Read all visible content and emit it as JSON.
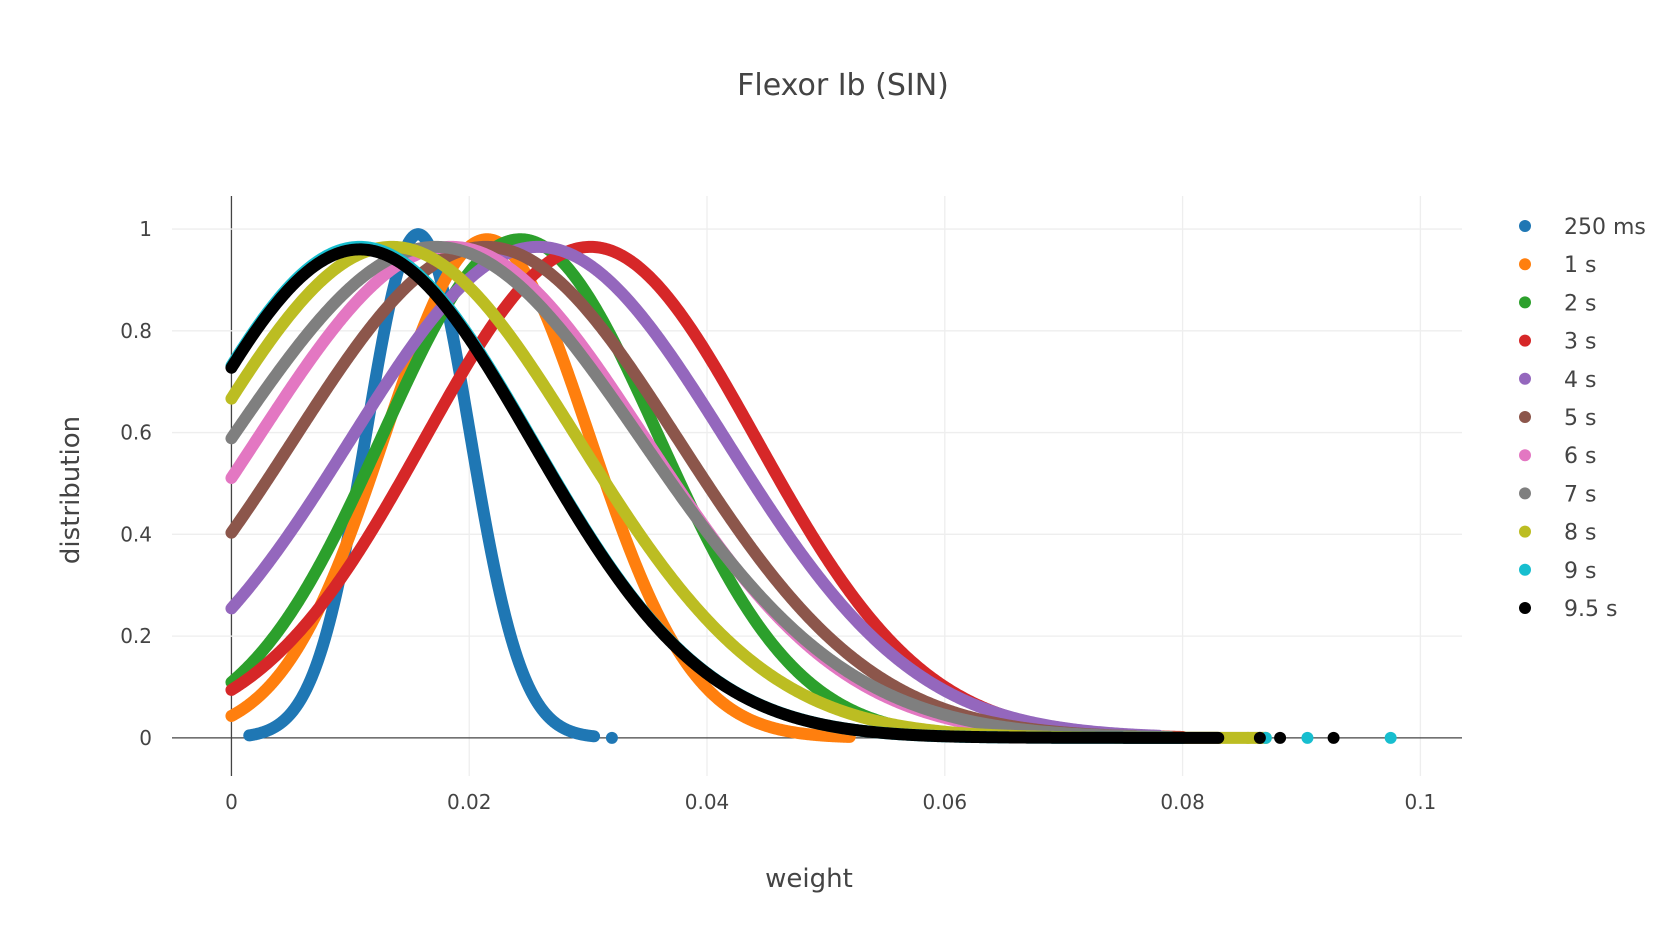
{
  "chart_data": {
    "type": "scatter",
    "title": "Flexor Ib (SIN)",
    "xlabel": "weight",
    "ylabel": "distribution",
    "xlim": [
      -0.005,
      0.1035
    ],
    "ylim": [
      -0.075,
      1.065
    ],
    "x_ticks": [
      0,
      0.02,
      0.04,
      0.06,
      0.08,
      0.1
    ],
    "x_tick_labels": [
      "0",
      "0.02",
      "0.04",
      "0.06",
      "0.08",
      "0.1"
    ],
    "y_ticks": [
      0,
      0.2,
      0.4,
      0.6,
      0.8,
      1
    ],
    "y_tick_labels": [
      "0",
      "0.2",
      "0.4",
      "0.6",
      "0.8",
      "1"
    ],
    "grid": true,
    "legend_position": "right",
    "series": [
      {
        "name": "250 ms",
        "color": "#1f77b4",
        "peak_x": 0.0157,
        "sigma": 0.00435,
        "peak_y": 0.99,
        "x_range": [
          0.0015,
          0.0305
        ],
        "outliers": [
          [
            0.032,
            0
          ]
        ]
      },
      {
        "name": "1 s",
        "color": "#ff7f0e",
        "peak_x": 0.0215,
        "sigma": 0.0086,
        "peak_y": 0.98,
        "x_range": [
          0,
          0.052
        ],
        "outliers": []
      },
      {
        "name": "2 s",
        "color": "#2ca02c",
        "peak_x": 0.0243,
        "sigma": 0.0116,
        "peak_y": 0.98,
        "x_range": [
          0,
          0.068
        ],
        "outliers": []
      },
      {
        "name": "3 s",
        "color": "#d62728",
        "peak_x": 0.0302,
        "sigma": 0.014,
        "peak_y": 0.965,
        "x_range": [
          0,
          0.08
        ],
        "outliers": []
      },
      {
        "name": "4 s",
        "color": "#9467bd",
        "peak_x": 0.0258,
        "sigma": 0.0158,
        "peak_y": 0.965,
        "x_range": [
          0,
          0.078
        ],
        "outliers": []
      },
      {
        "name": "5 s",
        "color": "#8c564b",
        "peak_x": 0.0214,
        "sigma": 0.0162,
        "peak_y": 0.965,
        "x_range": [
          0,
          0.076
        ],
        "outliers": []
      },
      {
        "name": "6 s",
        "color": "#e377c2",
        "peak_x": 0.0185,
        "sigma": 0.0164,
        "peak_y": 0.965,
        "x_range": [
          0,
          0.073
        ],
        "outliers": []
      },
      {
        "name": "7 s",
        "color": "#7f7f7f",
        "peak_x": 0.0172,
        "sigma": 0.0173,
        "peak_y": 0.965,
        "x_range": [
          0,
          0.079
        ],
        "outliers": []
      },
      {
        "name": "8 s",
        "color": "#bcbd22",
        "peak_x": 0.0135,
        "sigma": 0.0157,
        "peak_y": 0.965,
        "x_range": [
          0,
          0.087
        ],
        "outliers": [
          [
            0.0855,
            0
          ],
          [
            0.0865,
            0
          ]
        ]
      },
      {
        "name": "9 s",
        "color": "#17becf",
        "peak_x": 0.0108,
        "sigma": 0.0145,
        "peak_y": 0.965,
        "x_range": [
          0,
          0.08
        ],
        "outliers": [
          [
            0.0905,
            0
          ],
          [
            0.0975,
            0
          ],
          [
            0.087,
            0
          ]
        ]
      },
      {
        "name": "9.5 s",
        "color": "#000000",
        "peak_x": 0.0108,
        "sigma": 0.0145,
        "peak_y": 0.96,
        "x_range": [
          0,
          0.083
        ],
        "outliers": [
          [
            0.0865,
            0
          ],
          [
            0.0882,
            0
          ],
          [
            0.0927,
            0
          ]
        ]
      }
    ]
  }
}
